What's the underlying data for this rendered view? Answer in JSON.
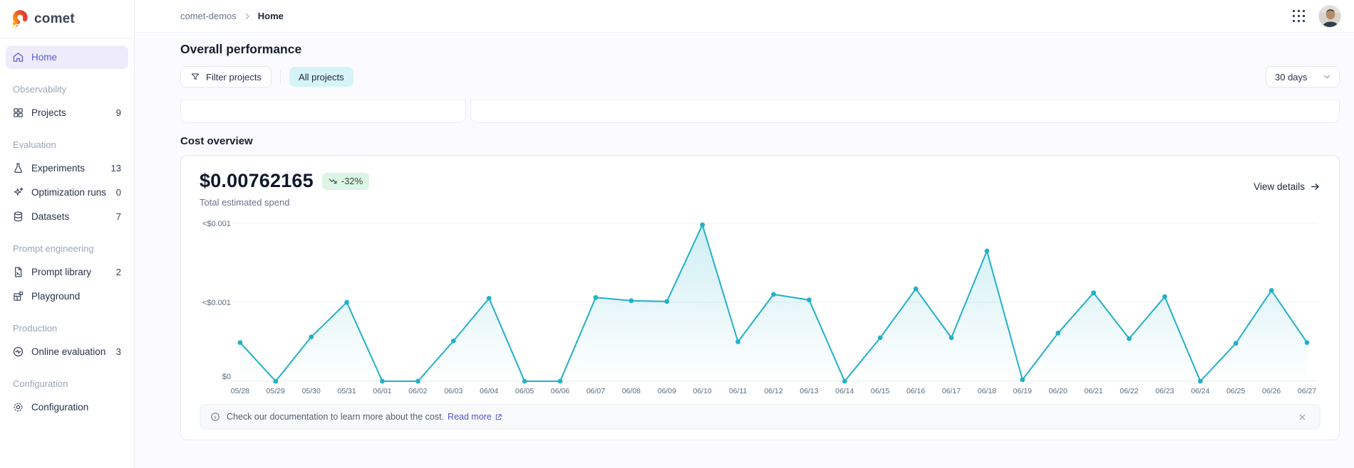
{
  "app": {
    "logo_text": "comet",
    "breadcrumb": {
      "project": "comet-demos",
      "page": "Home"
    }
  },
  "sidebar": {
    "nav": [
      {
        "type": "item",
        "id": "home",
        "label": "Home",
        "active": true
      },
      {
        "type": "section",
        "label": "Observability"
      },
      {
        "type": "item",
        "id": "projects",
        "label": "Projects",
        "count": "9"
      },
      {
        "type": "section",
        "label": "Evaluation"
      },
      {
        "type": "item",
        "id": "experiments",
        "label": "Experiments",
        "count": "13"
      },
      {
        "type": "item",
        "id": "optimization-runs",
        "label": "Optimization runs",
        "count": "0"
      },
      {
        "type": "item",
        "id": "datasets",
        "label": "Datasets",
        "count": "7"
      },
      {
        "type": "section",
        "label": "Prompt engineering"
      },
      {
        "type": "item",
        "id": "prompt-library",
        "label": "Prompt library",
        "count": "2"
      },
      {
        "type": "item",
        "id": "playground",
        "label": "Playground"
      },
      {
        "type": "section",
        "label": "Production"
      },
      {
        "type": "item",
        "id": "online-evaluation",
        "label": "Online evaluation",
        "count": "3"
      },
      {
        "type": "section",
        "label": "Configuration"
      },
      {
        "type": "item",
        "id": "configuration",
        "label": "Configuration"
      }
    ]
  },
  "page": {
    "title": "Overall performance",
    "filter_button": "Filter projects",
    "projects_chip": "All projects",
    "date_range": "30 days"
  },
  "cost": {
    "section_title": "Cost overview",
    "total": "$0.00762165",
    "delta": "-32%",
    "subtitle": "Total estimated spend",
    "view_details": "View details"
  },
  "banner": {
    "text": "Check our documentation to learn more about the cost.",
    "link": "Read more"
  },
  "chart_data": {
    "type": "line",
    "title": "Cost overview",
    "x": [
      "05/28",
      "05/29",
      "05/30",
      "05/31",
      "06/01",
      "06/02",
      "06/03",
      "06/04",
      "06/05",
      "06/06",
      "06/07",
      "06/08",
      "06/09",
      "06/10",
      "06/11",
      "06/12",
      "06/13",
      "06/14",
      "06/15",
      "06/16",
      "06/17",
      "06/18",
      "06/19",
      "06/20",
      "06/21",
      "06/22",
      "06/23",
      "06/24",
      "06/25",
      "06/26",
      "06/27"
    ],
    "values": [
      0.49,
      0,
      0.56,
      1.0,
      0,
      0,
      0.51,
      1.05,
      0,
      0,
      1.06,
      1.02,
      1.01,
      1.98,
      0.5,
      1.1,
      1.03,
      0,
      0.55,
      1.17,
      0.55,
      1.65,
      0.02,
      0.61,
      1.12,
      0.54,
      1.07,
      0,
      0.48,
      1.15,
      0.49
    ],
    "value_unit": "relative; 1.0 equals the lower <$0.001 gridline",
    "yticks": [
      "<$0.001",
      "<$0.001",
      "$0"
    ],
    "ylim_units": [
      0,
      2.1
    ],
    "grid": true,
    "legend": false,
    "line_color": "#22b1c7",
    "point_color": "#22b1c7",
    "area_fill_top": "rgba(34,177,199,0.22)"
  },
  "colors": {
    "accent_purple": "#5D5BD6",
    "active_item_bg": "#EEECFA",
    "chip_bg": "#D6F3F7",
    "badge_bg": "#DCF5E4",
    "link_indigo": "#5155D5",
    "chart_line": "#22b1c7"
  }
}
